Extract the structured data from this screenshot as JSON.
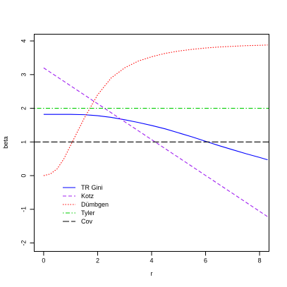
{
  "chart_data": {
    "type": "line",
    "title": "",
    "xlabel": "r",
    "ylabel": "beta",
    "xlim": [
      -0.35,
      8.35
    ],
    "ylim": [
      -2.25,
      4.2
    ],
    "xticks": [
      0,
      2,
      4,
      6,
      8
    ],
    "yticks": [
      -2,
      -1,
      0,
      1,
      2,
      3,
      4
    ],
    "grid": false,
    "legend_position": "bottom-left",
    "series": [
      {
        "name": "TR Gini",
        "color": "#0000ff",
        "dash": "solid",
        "x": [
          0,
          0.5,
          1,
          1.5,
          2,
          2.5,
          3,
          3.5,
          4,
          4.5,
          5,
          5.5,
          6,
          6.5,
          7,
          7.5,
          8,
          8.3
        ],
        "y": [
          1.82,
          1.82,
          1.82,
          1.81,
          1.78,
          1.73,
          1.66,
          1.58,
          1.49,
          1.39,
          1.27,
          1.15,
          1.02,
          0.89,
          0.77,
          0.65,
          0.54,
          0.47
        ]
      },
      {
        "name": "Kotz",
        "color": "#a020f0",
        "dash": "dashed",
        "x": [
          0,
          8.3
        ],
        "y": [
          3.2,
          -1.22
        ]
      },
      {
        "name": "Dümbgen",
        "color": "#ff0000",
        "dash": "dotted",
        "x": [
          0,
          0.25,
          0.5,
          0.75,
          1,
          1.25,
          1.5,
          1.75,
          2,
          2.5,
          3,
          3.5,
          4,
          4.5,
          5,
          5.5,
          6,
          6.5,
          7,
          7.5,
          8,
          8.3
        ],
        "y": [
          0.0,
          0.05,
          0.2,
          0.5,
          0.9,
          1.3,
          1.7,
          2.05,
          2.4,
          2.9,
          3.2,
          3.4,
          3.53,
          3.63,
          3.7,
          3.75,
          3.79,
          3.82,
          3.84,
          3.86,
          3.87,
          3.88
        ]
      },
      {
        "name": "Tyler",
        "color": "#00cd00",
        "dash": "dotdash",
        "x": [
          -0.35,
          8.35
        ],
        "y": [
          2.0,
          2.0
        ]
      },
      {
        "name": "Cov",
        "color": "#000000",
        "dash": "longdash",
        "x": [
          -0.35,
          8.35
        ],
        "y": [
          1.0,
          1.0
        ]
      }
    ]
  }
}
